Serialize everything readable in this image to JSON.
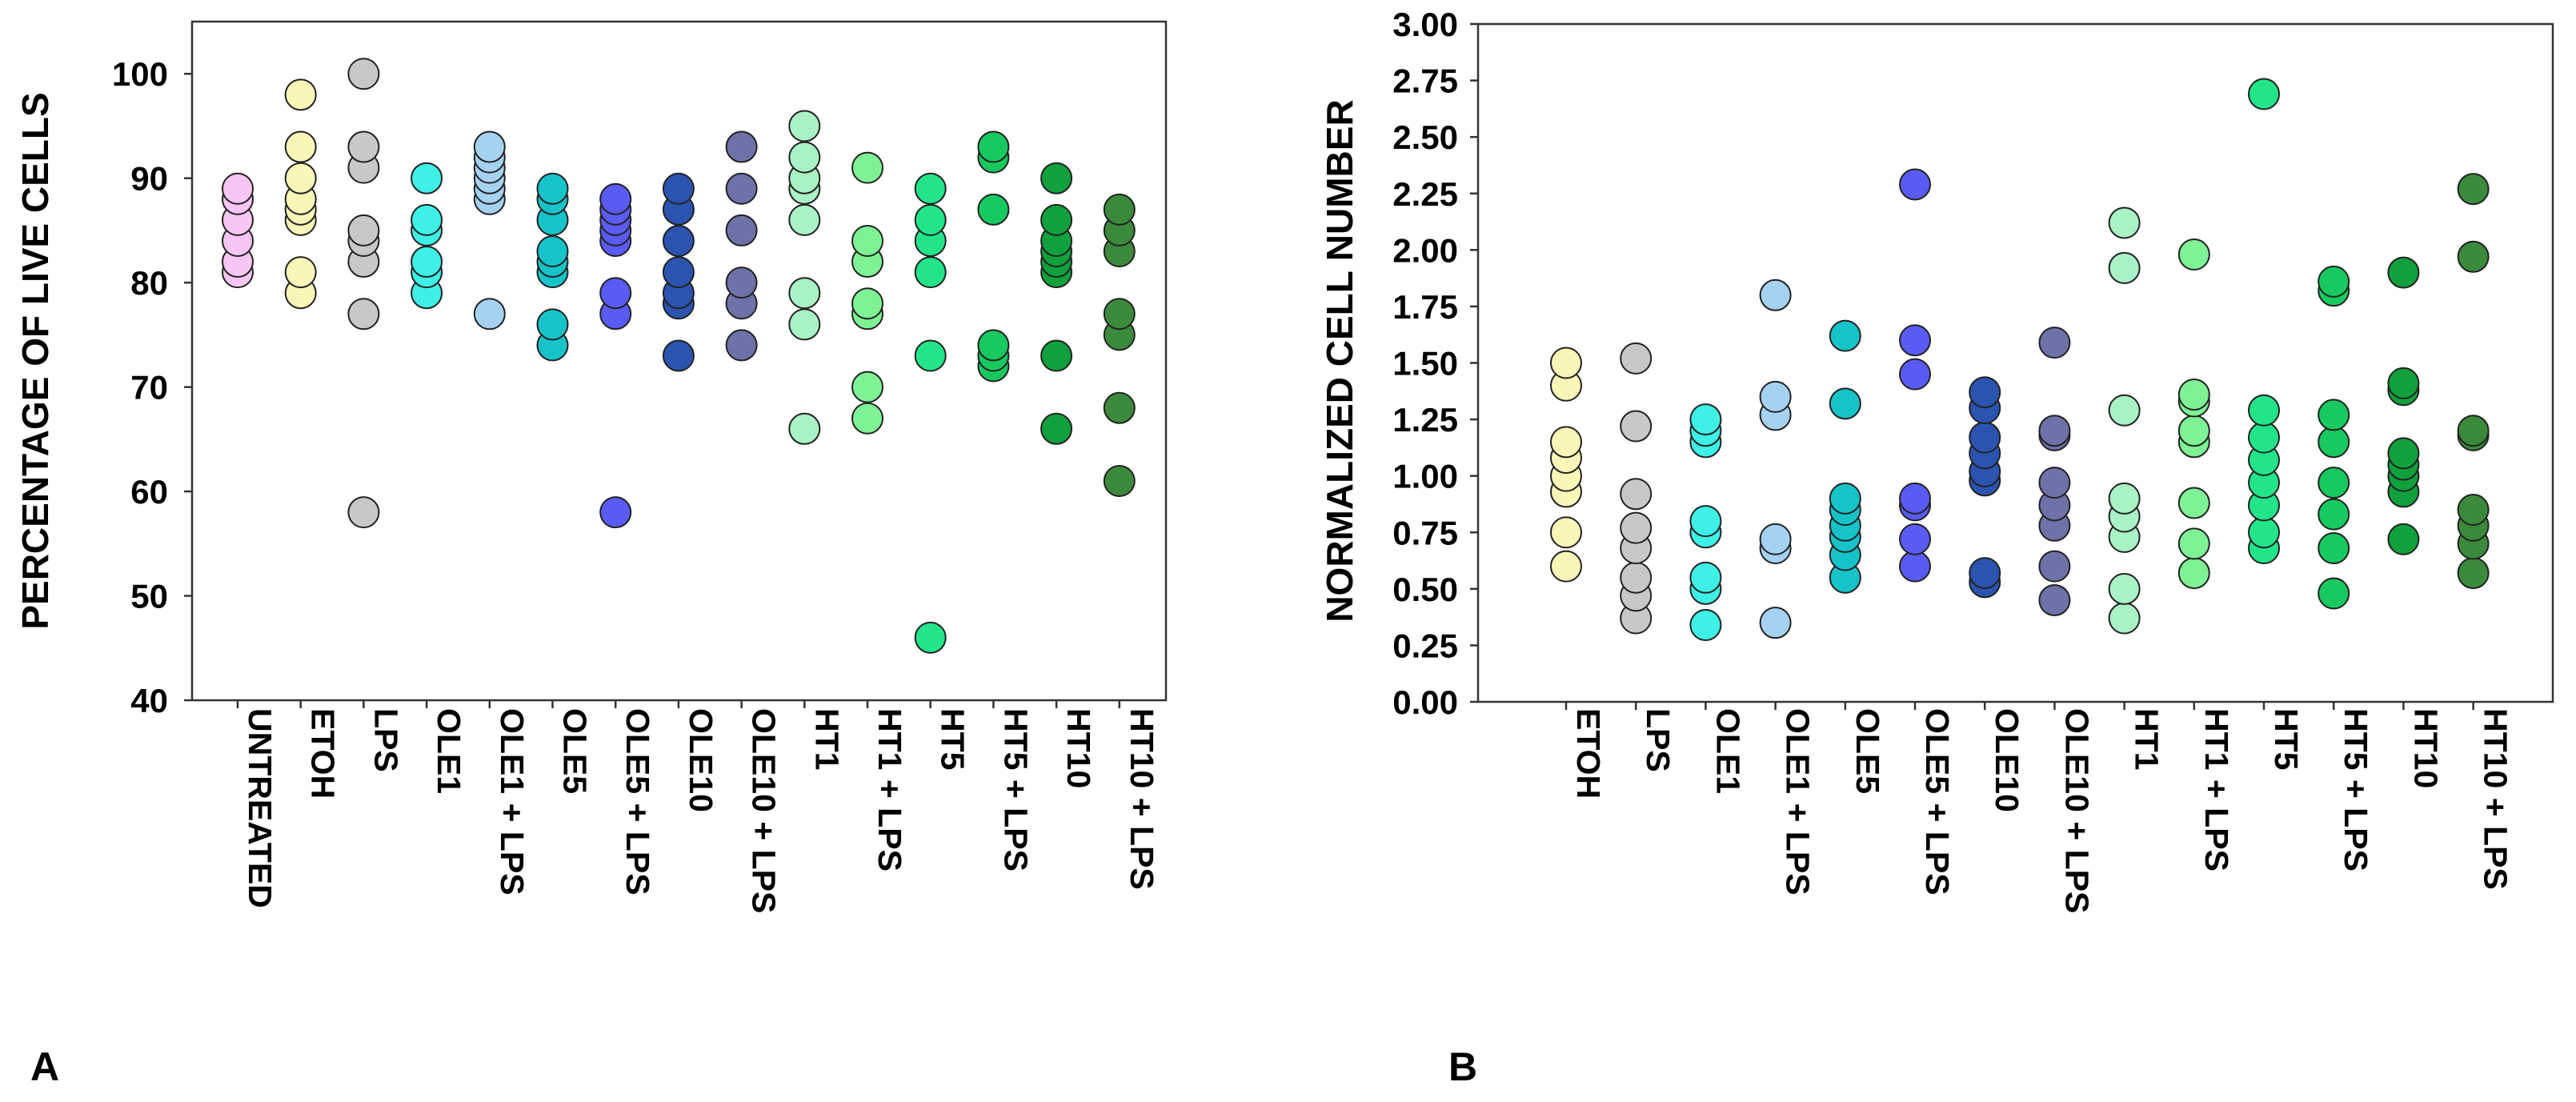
{
  "panels": [
    {
      "letter": "A"
    },
    {
      "letter": "B"
    }
  ],
  "chart_data": [
    {
      "type": "scatter",
      "ylabel": "PERCENTAGE OF LIVE CELLS",
      "xlabel": "",
      "ylim": [
        40,
        105
      ],
      "yticks": [
        40,
        50,
        60,
        70,
        80,
        90,
        100
      ],
      "categories": [
        "UNTREATED",
        "ETOH",
        "LPS",
        "OLE1",
        "OLE1 + LPS",
        "OLE5",
        "OLE5 + LPS",
        "OLE10",
        "OLE10 + LPS",
        "HT1",
        "HT1 + LPS",
        "HT5",
        "HT5 + LPS",
        "HT10",
        "HT10 + LPS"
      ],
      "colors": [
        "#f7c6f5",
        "#f9f6b8",
        "#c8c8c8",
        "#3ff0e6",
        "#a6d2f2",
        "#16c3c9",
        "#5a5bf3",
        "#2b54b0",
        "#6e72a8",
        "#a9f2c5",
        "#7ef295",
        "#22e58a",
        "#17c95f",
        "#10a03c",
        "#3b8a3b"
      ],
      "series": [
        {
          "name": "UNTREATED",
          "values": [
            81,
            82,
            84,
            86,
            88,
            89
          ]
        },
        {
          "name": "ETOH",
          "values": [
            79,
            81,
            86,
            87,
            88,
            90,
            93,
            98
          ]
        },
        {
          "name": "LPS",
          "values": [
            58,
            77,
            82,
            84,
            85,
            91,
            93,
            100
          ]
        },
        {
          "name": "OLE1",
          "values": [
            79,
            81,
            82,
            85,
            86,
            90
          ]
        },
        {
          "name": "OLE1 + LPS",
          "values": [
            77,
            88,
            89,
            90,
            91,
            92,
            93
          ]
        },
        {
          "name": "OLE5",
          "values": [
            74,
            76,
            81,
            82,
            83,
            86,
            88,
            89
          ]
        },
        {
          "name": "OLE5 + LPS",
          "values": [
            58,
            77,
            79,
            84,
            85,
            86,
            87,
            88
          ]
        },
        {
          "name": "OLE10",
          "values": [
            73,
            78,
            79,
            81,
            84,
            87,
            89
          ]
        },
        {
          "name": "OLE10 + LPS",
          "values": [
            74,
            78,
            80,
            85,
            89,
            93
          ]
        },
        {
          "name": "HT1",
          "values": [
            66,
            76,
            79,
            86,
            89,
            90,
            92,
            95
          ]
        },
        {
          "name": "HT1 + LPS",
          "values": [
            67,
            70,
            77,
            78,
            82,
            84,
            91
          ]
        },
        {
          "name": "HT5",
          "values": [
            46,
            73,
            81,
            84,
            86,
            89
          ]
        },
        {
          "name": "HT5 + LPS",
          "values": [
            72,
            73,
            74,
            87,
            92,
            93
          ]
        },
        {
          "name": "HT10",
          "values": [
            66,
            73,
            81,
            82,
            83,
            84,
            86,
            90
          ]
        },
        {
          "name": "HT10 + LPS",
          "values": [
            61,
            68,
            75,
            77,
            83,
            85,
            87
          ]
        }
      ]
    },
    {
      "type": "scatter",
      "ylabel": "NORMALIZED CELL NUMBER",
      "xlabel": "",
      "ylim": [
        0,
        3
      ],
      "yticks": [
        "0.00",
        "0.25",
        "0.50",
        "0.75",
        "1.00",
        "1.25",
        "1.50",
        "1.75",
        "2.00",
        "2.25",
        "2.50",
        "2.75",
        "3.00"
      ],
      "categories": [
        "ETOH",
        "LPS",
        "OLE1",
        "OLE1 + LPS",
        "OLE5",
        "OLE5 + LPS",
        "OLE10",
        "OLE10 + LPS",
        "HT1",
        "HT1 + LPS",
        "HT5",
        "HT5 + LPS",
        "HT10",
        "HT10 + LPS"
      ],
      "colors": [
        "#f9f6b8",
        "#c8c8c8",
        "#3ff0e6",
        "#a6d2f2",
        "#16c3c9",
        "#5a5bf3",
        "#2b54b0",
        "#6e72a8",
        "#a9f2c5",
        "#7ef295",
        "#22e58a",
        "#17c95f",
        "#10a03c",
        "#3b8a3b"
      ],
      "series": [
        {
          "name": "ETOH",
          "values": [
            0.6,
            0.75,
            0.93,
            1.0,
            1.08,
            1.15,
            1.4,
            1.5
          ]
        },
        {
          "name": "LPS",
          "values": [
            0.37,
            0.47,
            0.55,
            0.68,
            0.77,
            0.92,
            1.22,
            1.52
          ]
        },
        {
          "name": "OLE1",
          "values": [
            0.34,
            0.5,
            0.55,
            0.75,
            0.8,
            1.15,
            1.2,
            1.25
          ]
        },
        {
          "name": "OLE1 + LPS",
          "values": [
            0.35,
            0.68,
            0.72,
            1.27,
            1.35,
            1.8
          ]
        },
        {
          "name": "OLE5",
          "values": [
            0.55,
            0.65,
            0.73,
            0.78,
            0.85,
            0.9,
            1.32,
            1.62
          ]
        },
        {
          "name": "OLE5 + LPS",
          "values": [
            0.6,
            0.72,
            0.87,
            0.9,
            1.45,
            1.6,
            2.29
          ]
        },
        {
          "name": "OLE10",
          "values": [
            0.53,
            0.57,
            0.98,
            1.02,
            1.1,
            1.17,
            1.3,
            1.37
          ]
        },
        {
          "name": "OLE10 + LPS",
          "values": [
            0.45,
            0.6,
            0.78,
            0.87,
            0.97,
            1.18,
            1.2,
            1.59
          ]
        },
        {
          "name": "HT1",
          "values": [
            0.37,
            0.5,
            0.73,
            0.82,
            0.9,
            1.29,
            1.92,
            2.12
          ]
        },
        {
          "name": "HT1 + LPS",
          "values": [
            0.57,
            0.7,
            0.88,
            1.15,
            1.2,
            1.33,
            1.36,
            1.98
          ]
        },
        {
          "name": "HT5",
          "values": [
            0.68,
            0.75,
            0.87,
            0.97,
            1.07,
            1.17,
            1.29,
            2.69
          ]
        },
        {
          "name": "HT5 + LPS",
          "values": [
            0.48,
            0.68,
            0.83,
            0.97,
            1.15,
            1.27,
            1.82,
            1.86
          ]
        },
        {
          "name": "HT10",
          "values": [
            0.72,
            0.93,
            1.0,
            1.05,
            1.1,
            1.38,
            1.41,
            1.9
          ]
        },
        {
          "name": "HT10 + LPS",
          "values": [
            0.57,
            0.7,
            0.78,
            0.85,
            1.18,
            1.2,
            1.97,
            2.27
          ]
        }
      ]
    }
  ]
}
